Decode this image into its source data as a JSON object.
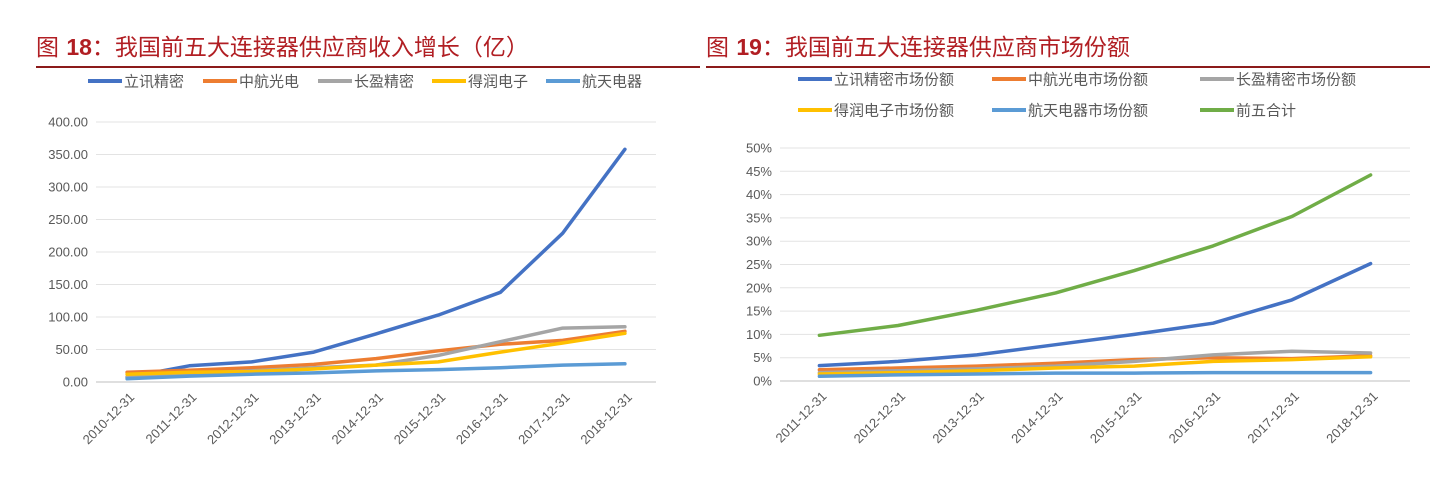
{
  "charts": [
    {
      "title_prefix": "图 ",
      "title_num": "18",
      "title_text": "：我国前五大连接器供应商收入增长（亿）",
      "chart_data": {
        "type": "line",
        "title": "图 18：我国前五大连接器供应商收入增长（亿）",
        "categories": [
          "2010-12-31",
          "2011-12-31",
          "2012-12-31",
          "2013-12-31",
          "2014-12-31",
          "2015-12-31",
          "2016-12-31",
          "2017-12-31",
          "2018-12-31"
        ],
        "ylim": [
          0,
          400
        ],
        "yticks": [
          "0.00",
          "50.00",
          "100.00",
          "150.00",
          "200.00",
          "250.00",
          "300.00",
          "350.00",
          "400.00"
        ],
        "legend_position": "top",
        "grid": true,
        "series": [
          {
            "name": "立讯精密",
            "color": "#4472c4",
            "values": [
              7,
              25,
              31,
              46,
              74,
              103,
              138,
              229,
              358
            ]
          },
          {
            "name": "中航光电",
            "color": "#ed7d31",
            "values": [
              15,
              18,
              22,
              27,
              36,
              48,
              58,
              64,
              78
            ]
          },
          {
            "name": "长盈精密",
            "color": "#a5a5a5",
            "values": [
              8,
              13,
              17,
              22,
              26,
              41,
              62,
              83,
              85
            ]
          },
          {
            "name": "得润电子",
            "color": "#ffc000",
            "values": [
              12,
              15,
              16,
              20,
              26,
              31,
              46,
              60,
              75
            ]
          },
          {
            "name": "航天电器",
            "color": "#5b9bd5",
            "values": [
              5,
              9,
              12,
              14,
              17,
              19,
              22,
              26,
              28
            ]
          }
        ]
      }
    },
    {
      "title_prefix": "图 ",
      "title_num": "19",
      "title_text": "：我国前五大连接器供应商市场份额",
      "chart_data": {
        "type": "line",
        "title": "图 19：我国前五大连接器供应商市场份额",
        "categories": [
          "2011-12-31",
          "2012-12-31",
          "2013-12-31",
          "2014-12-31",
          "2015-12-31",
          "2016-12-31",
          "2017-12-31",
          "2018-12-31"
        ],
        "ylim": [
          0,
          50
        ],
        "yticks": [
          "0%",
          "5%",
          "10%",
          "15%",
          "20%",
          "25%",
          "30%",
          "35%",
          "40%",
          "45%",
          "50%"
        ],
        "legend_position": "top",
        "grid": true,
        "series": [
          {
            "name": "立讯精密市场份额",
            "color": "#4472c4",
            "values": [
              3.3,
              4.2,
              5.6,
              7.8,
              10,
              12.4,
              17.4,
              25.2
            ]
          },
          {
            "name": "中航光电市场份额",
            "color": "#ed7d31",
            "values": [
              2.4,
              2.8,
              3.2,
              3.8,
              4.6,
              5,
              4.8,
              5.4
            ]
          },
          {
            "name": "长盈精密市场份额",
            "color": "#a5a5a5",
            "values": [
              1.8,
              2.2,
              2.6,
              3.2,
              4.2,
              5.6,
              6.4,
              6
            ]
          },
          {
            "name": "得润电子市场份额",
            "color": "#ffc000",
            "values": [
              1.5,
              1.8,
              2.2,
              2.8,
              3.2,
              4.2,
              4.6,
              5.2
            ]
          },
          {
            "name": "航天电器市场份额",
            "color": "#5b9bd5",
            "values": [
              1,
              1.3,
              1.5,
              1.7,
              1.7,
              1.8,
              1.8,
              1.8
            ]
          },
          {
            "name": "前五合计",
            "color": "#70ad47",
            "values": [
              9.8,
              11.9,
              15.2,
              18.9,
              23.7,
              29,
              35.3,
              44.2
            ]
          }
        ]
      }
    }
  ]
}
